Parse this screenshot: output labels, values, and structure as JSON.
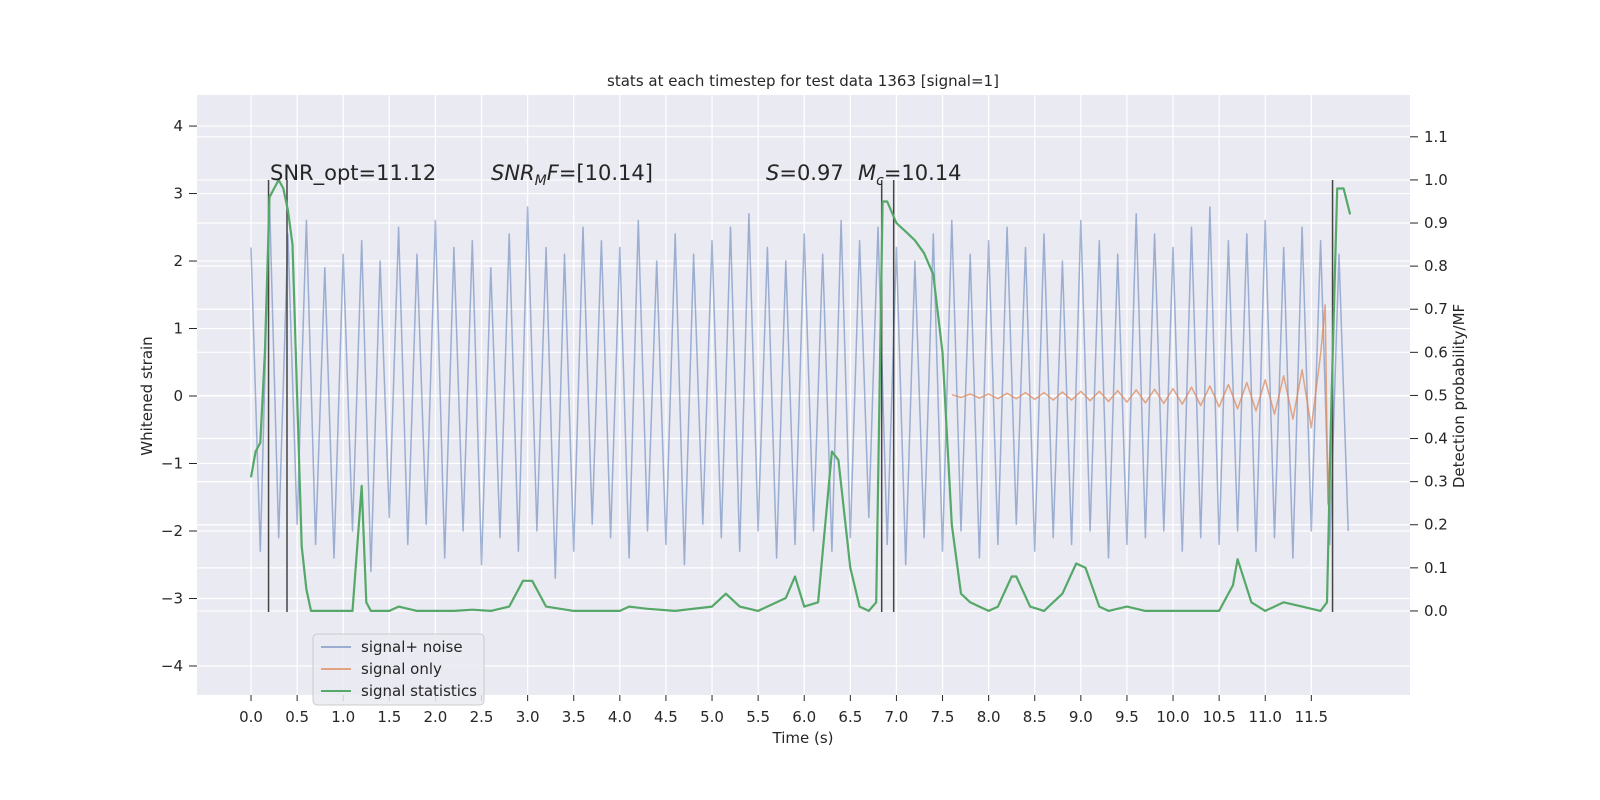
{
  "chart_data": {
    "type": "line",
    "title": "stats at each timestep for test data 1363 [signal=1]",
    "xlabel": "Time (s)",
    "ylabel": "Whitened strain",
    "y2label": "Detection probability/MF",
    "xlim": [
      -0.586,
      12.57
    ],
    "ylim": [
      -4.43,
      4.46
    ],
    "y2lim": [
      -0.195,
      1.197
    ],
    "grid": true,
    "legend": "lower left",
    "background": "#eaeaf2",
    "xticks": [
      {
        "value": 0,
        "label": "0.0"
      },
      0.5,
      {
        "value": 1,
        "label": "1.0"
      },
      1.5,
      {
        "value": 2,
        "label": "2.0"
      },
      2.5,
      {
        "value": 3,
        "label": "3.0"
      },
      3.5,
      {
        "value": 4,
        "label": "4.0"
      },
      4.5,
      {
        "value": 5,
        "label": "5.0"
      },
      5.5,
      {
        "value": 6,
        "label": "6.0"
      },
      6.5,
      {
        "value": 7,
        "label": "7.0"
      },
      7.5,
      {
        "value": 8,
        "label": "8.0"
      },
      8.5,
      {
        "value": 9,
        "label": "9.0"
      },
      9.5,
      {
        "value": 10,
        "label": "10.0"
      },
      10.5,
      {
        "value": 11,
        "label": "11.0"
      },
      11.5
    ],
    "yticks": [
      {
        "value": -4,
        "label": "−4"
      },
      {
        "value": -3,
        "label": "−3"
      },
      {
        "value": -2,
        "label": "−2"
      },
      {
        "value": -1,
        "label": "−1"
      },
      0,
      1,
      2,
      3,
      4
    ],
    "y2ticks": [
      {
        "value": 0,
        "label": "0.0"
      },
      0.1,
      0.2,
      0.3,
      0.4,
      0.5,
      0.6,
      0.7,
      0.8,
      0.9,
      {
        "value": 1,
        "label": "1.0"
      },
      1.1
    ],
    "series": [
      {
        "name": "signal+ noise",
        "color": "#4c72b0",
        "opacity": 0.5,
        "x": [
          0.0,
          0.1,
          0.2,
          0.3,
          0.4,
          0.5,
          0.6,
          0.7,
          0.8,
          0.9,
          1.0,
          1.1,
          1.2,
          1.3,
          1.4,
          1.5,
          1.6,
          1.7,
          1.8,
          1.9,
          2.0,
          2.1,
          2.2,
          2.3,
          2.4,
          2.5,
          2.6,
          2.7,
          2.8,
          2.9,
          3.0,
          3.1,
          3.2,
          3.3,
          3.4,
          3.5,
          3.6,
          3.7,
          3.8,
          3.9,
          4.0,
          4.1,
          4.2,
          4.3,
          4.4,
          4.5,
          4.6,
          4.7,
          4.8,
          4.9,
          5.0,
          5.1,
          5.2,
          5.3,
          5.4,
          5.5,
          5.6,
          5.7,
          5.8,
          5.9,
          6.0,
          6.1,
          6.2,
          6.3,
          6.4,
          6.5,
          6.6,
          6.7,
          6.8,
          6.9,
          7.0,
          7.1,
          7.2,
          7.3,
          7.4,
          7.5,
          7.6,
          7.7,
          7.8,
          7.9,
          8.0,
          8.1,
          8.2,
          8.3,
          8.4,
          8.5,
          8.6,
          8.7,
          8.8,
          8.9,
          9.0,
          9.1,
          9.2,
          9.3,
          9.4,
          9.5,
          9.6,
          9.7,
          9.8,
          9.9,
          10.0,
          10.1,
          10.2,
          10.3,
          10.4,
          10.5,
          10.6,
          10.7,
          10.8,
          10.9,
          11.0,
          11.1,
          11.2,
          11.3,
          11.4,
          11.5,
          11.6,
          11.7,
          11.8,
          11.9
        ],
        "values": [
          2.2,
          -2.3,
          2.9,
          -2.1,
          2.4,
          -1.9,
          2.6,
          -2.2,
          1.9,
          -2.4,
          2.1,
          -2.0,
          2.3,
          -2.6,
          2.0,
          -1.8,
          2.5,
          -2.2,
          2.1,
          -1.9,
          2.6,
          -2.4,
          2.2,
          -2.0,
          2.3,
          -2.5,
          1.9,
          -2.1,
          2.4,
          -2.3,
          2.8,
          -2.0,
          2.2,
          -2.7,
          2.1,
          -2.3,
          2.5,
          -1.9,
          2.3,
          -2.1,
          2.2,
          -2.4,
          2.6,
          -2.0,
          2.0,
          -2.2,
          2.4,
          -2.5,
          2.1,
          -1.9,
          2.3,
          -2.1,
          2.5,
          -2.3,
          2.7,
          -2.0,
          2.2,
          -2.4,
          2.0,
          -2.2,
          2.4,
          -2.0,
          2.1,
          -2.3,
          2.6,
          -2.1,
          2.3,
          -1.8,
          2.5,
          -2.2,
          2.2,
          -2.5,
          2.0,
          -2.1,
          2.4,
          -2.3,
          2.6,
          -2.0,
          2.1,
          -2.4,
          2.3,
          -2.2,
          2.5,
          -1.9,
          2.2,
          -2.3,
          2.4,
          -2.1,
          2.0,
          -2.2,
          2.6,
          -2.0,
          2.3,
          -2.4,
          2.1,
          -2.2,
          2.7,
          -2.1,
          2.4,
          -2.0,
          2.2,
          -2.3,
          2.5,
          -2.1,
          2.8,
          -2.2,
          2.3,
          -2.0,
          2.4,
          -2.3,
          2.6,
          -2.1,
          2.2,
          -2.4,
          2.5,
          -2.0,
          2.3,
          -2.2,
          2.1,
          -2.0
        ]
      },
      {
        "name": "signal only",
        "color": "#dd8452",
        "opacity": 0.7,
        "x": [
          7.6,
          7.7,
          7.8,
          7.9,
          8.0,
          8.1,
          8.2,
          8.3,
          8.4,
          8.5,
          8.6,
          8.7,
          8.8,
          8.9,
          9.0,
          9.1,
          9.2,
          9.3,
          9.4,
          9.5,
          9.6,
          9.7,
          9.8,
          9.9,
          10.0,
          10.1,
          10.2,
          10.3,
          10.4,
          10.5,
          10.6,
          10.7,
          10.8,
          10.9,
          11.0,
          11.1,
          11.2,
          11.3,
          11.4,
          11.5,
          11.6,
          11.65,
          11.68,
          11.72
        ],
        "values": [
          0.02,
          -0.02,
          0.03,
          -0.03,
          0.03,
          -0.04,
          0.04,
          -0.04,
          0.05,
          -0.05,
          0.05,
          -0.06,
          0.06,
          -0.06,
          0.07,
          -0.07,
          0.07,
          -0.08,
          0.08,
          -0.09,
          0.09,
          -0.1,
          0.1,
          -0.11,
          0.11,
          -0.12,
          0.13,
          -0.14,
          0.15,
          -0.16,
          0.17,
          -0.19,
          0.2,
          -0.22,
          0.24,
          -0.27,
          0.3,
          -0.34,
          0.39,
          -0.47,
          0.62,
          1.35,
          -1.6,
          0.0
        ]
      },
      {
        "name": "signal statistics",
        "color": "#55a868",
        "axis": "y2",
        "x": [
          0.0,
          0.05,
          0.1,
          0.15,
          0.2,
          0.25,
          0.3,
          0.35,
          0.4,
          0.45,
          0.5,
          0.55,
          0.6,
          0.65,
          0.8,
          1.1,
          1.2,
          1.25,
          1.3,
          1.5,
          1.6,
          1.8,
          2.2,
          2.4,
          2.6,
          2.8,
          2.95,
          3.05,
          3.2,
          3.5,
          4.0,
          4.1,
          4.3,
          4.6,
          5.0,
          5.15,
          5.3,
          5.5,
          5.8,
          5.9,
          6.0,
          6.15,
          6.3,
          6.37,
          6.5,
          6.6,
          6.7,
          6.78,
          6.85,
          6.9,
          7.0,
          7.1,
          7.2,
          7.3,
          7.4,
          7.5,
          7.6,
          7.7,
          7.8,
          7.9,
          8.0,
          8.1,
          8.25,
          8.3,
          8.45,
          8.6,
          8.8,
          8.95,
          9.05,
          9.2,
          9.3,
          9.5,
          9.7,
          10.2,
          10.5,
          10.65,
          10.7,
          10.85,
          11.0,
          11.2,
          11.4,
          11.6,
          11.67,
          11.72,
          11.78,
          11.85,
          11.92
        ],
        "values": [
          0.31,
          0.37,
          0.39,
          0.6,
          0.96,
          0.98,
          1.0,
          0.98,
          0.93,
          0.85,
          0.5,
          0.15,
          0.05,
          0.0,
          0.0,
          0.0,
          0.29,
          0.02,
          0.0,
          0.0,
          0.01,
          0.0,
          0.0,
          0.003,
          0.0,
          0.01,
          0.07,
          0.07,
          0.01,
          0.0,
          0.0,
          0.01,
          0.005,
          0.0,
          0.01,
          0.04,
          0.01,
          0.0,
          0.03,
          0.08,
          0.01,
          0.02,
          0.37,
          0.35,
          0.1,
          0.01,
          0.0,
          0.02,
          0.95,
          0.95,
          0.9,
          0.88,
          0.86,
          0.83,
          0.78,
          0.6,
          0.2,
          0.04,
          0.02,
          0.01,
          0.0,
          0.01,
          0.08,
          0.08,
          0.01,
          0.0,
          0.04,
          0.11,
          0.1,
          0.01,
          0.0,
          0.01,
          0.0,
          0.0,
          0.0,
          0.06,
          0.12,
          0.02,
          0.0,
          0.02,
          0.01,
          0.0,
          0.02,
          0.5,
          0.98,
          0.98,
          0.92
        ]
      }
    ],
    "vlines": {
      "x": [
        0.19,
        0.39,
        6.84,
        6.97,
        11.73
      ],
      "ylim": [
        -3.2,
        3.2
      ],
      "color": "#444444"
    },
    "annotations": [
      [
        {
          "text": "SNR_opt=11.12"
        }
      ],
      [
        {
          "text": "SNR",
          "style": "italic"
        },
        {
          "text": "M",
          "style": "sub"
        },
        {
          "text": "F",
          "style": "italic"
        },
        {
          "text": "=[10.14]"
        }
      ],
      [
        {
          "text": "S",
          "style": "italic"
        },
        {
          "text": "=0.97"
        }
      ],
      [
        {
          "text": "M",
          "style": "italic"
        },
        {
          "text": "c",
          "style": "sub"
        },
        {
          "text": "=10.14"
        }
      ]
    ]
  }
}
